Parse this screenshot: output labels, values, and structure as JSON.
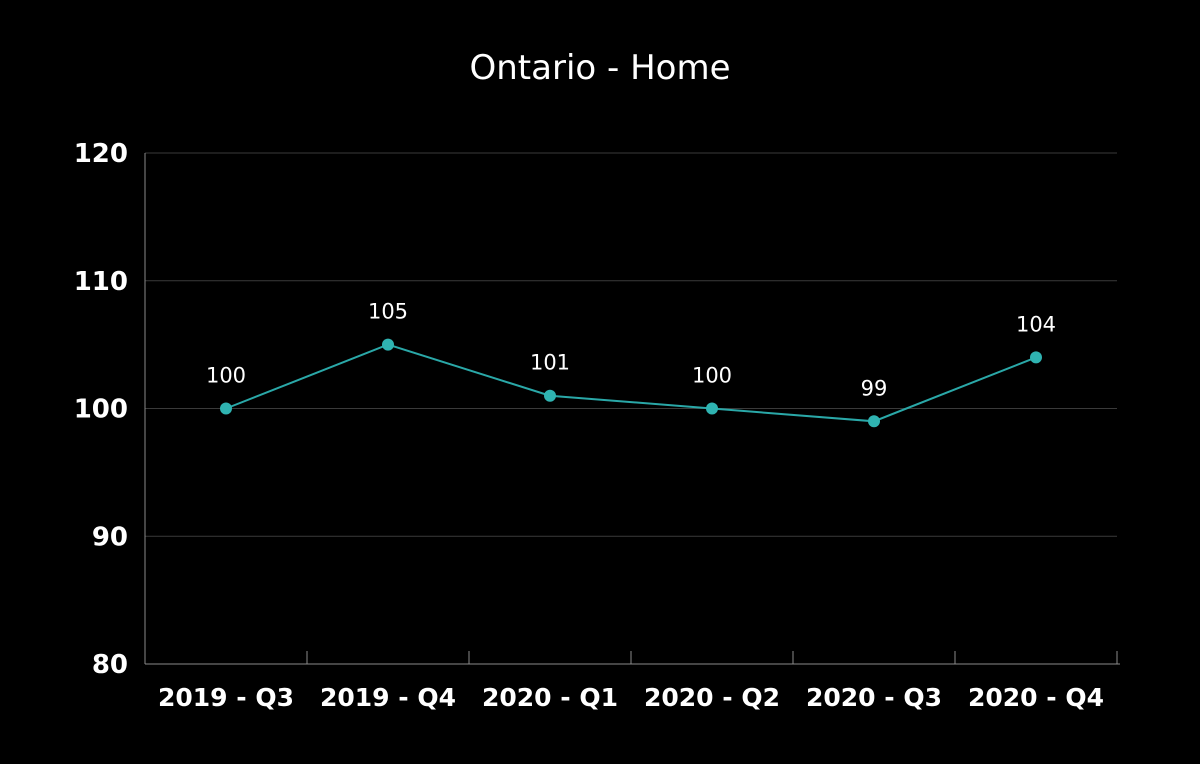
{
  "chart_data": {
    "type": "line",
    "title": "Ontario - Home",
    "xlabel": "",
    "ylabel": "",
    "categories": [
      "2019 - Q3",
      "2019 - Q4",
      "2020 - Q1",
      "2020 - Q2",
      "2020 - Q3",
      "2020 - Q4"
    ],
    "series": [
      {
        "values": [
          100,
          105,
          101,
          100,
          99,
          104
        ]
      }
    ],
    "data_labels": [
      "100",
      "105",
      "101",
      "100",
      "99",
      "104"
    ],
    "ylim": [
      80,
      120
    ],
    "yticks": [
      120,
      110,
      100,
      90,
      80
    ],
    "ytick_labels": [
      "120",
      "110",
      "100",
      "90",
      "80"
    ],
    "grid": true,
    "legend": "none",
    "colors": {
      "background": "#000000",
      "line": "#2aa8a8",
      "marker": "#2fb3b1",
      "grid": "#3a3a3a",
      "axis": "#8a8a8a",
      "text": "#ffffff"
    }
  }
}
